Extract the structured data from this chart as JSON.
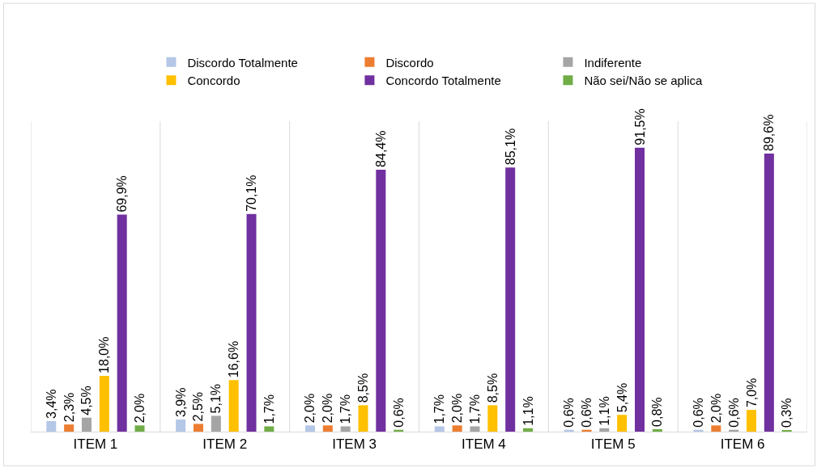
{
  "chart_data": {
    "type": "bar",
    "categories": [
      "ITEM 1",
      "ITEM 2",
      "ITEM 3",
      "ITEM 4",
      "ITEM 5",
      "ITEM 6"
    ],
    "series": [
      {
        "name": "Discordo Totalmente",
        "color": "#b4c7e7",
        "values": [
          3.4,
          3.9,
          2.0,
          1.7,
          0.6,
          0.6
        ],
        "value_labels": [
          "3,4%",
          "3,9%",
          "2,0%",
          "1,7%",
          "0,6%",
          "0,6%"
        ]
      },
      {
        "name": "Discordo",
        "color": "#ed7d31",
        "values": [
          2.3,
          2.5,
          2.0,
          2.0,
          0.6,
          2.0
        ],
        "value_labels": [
          "2,3%",
          "2,5%",
          "2,0%",
          "2,0%",
          "0,6%",
          "2,0%"
        ]
      },
      {
        "name": "Indiferente",
        "color": "#a5a5a5",
        "values": [
          4.5,
          5.1,
          1.7,
          1.7,
          1.1,
          0.6
        ],
        "value_labels": [
          "4,5%",
          "5,1%",
          "1,7%",
          "1,7%",
          "1,1%",
          "0,6%"
        ]
      },
      {
        "name": "Concordo",
        "color": "#ffc000",
        "values": [
          18.0,
          16.6,
          8.5,
          8.5,
          5.4,
          7.0
        ],
        "value_labels": [
          "18,0%",
          "16,6%",
          "8,5%",
          "8,5%",
          "5,4%",
          "7,0%"
        ]
      },
      {
        "name": "Concordo Totalmente",
        "color": "#7030a0",
        "values": [
          69.9,
          70.1,
          84.4,
          85.1,
          91.5,
          89.6
        ],
        "value_labels": [
          "69,9%",
          "70,1%",
          "84,4%",
          "85,1%",
          "91,5%",
          "89,6%"
        ]
      },
      {
        "name": "Não sei/Não se aplica",
        "color": "#70ad47",
        "values": [
          2.0,
          1.7,
          0.6,
          1.1,
          0.8,
          0.3
        ],
        "value_labels": [
          "2,0%",
          "1,7%",
          "0,6%",
          "1,1%",
          "0,8%",
          "0,3%"
        ]
      }
    ],
    "ylim": [
      0,
      100
    ],
    "grid": "x",
    "legend": "top"
  }
}
